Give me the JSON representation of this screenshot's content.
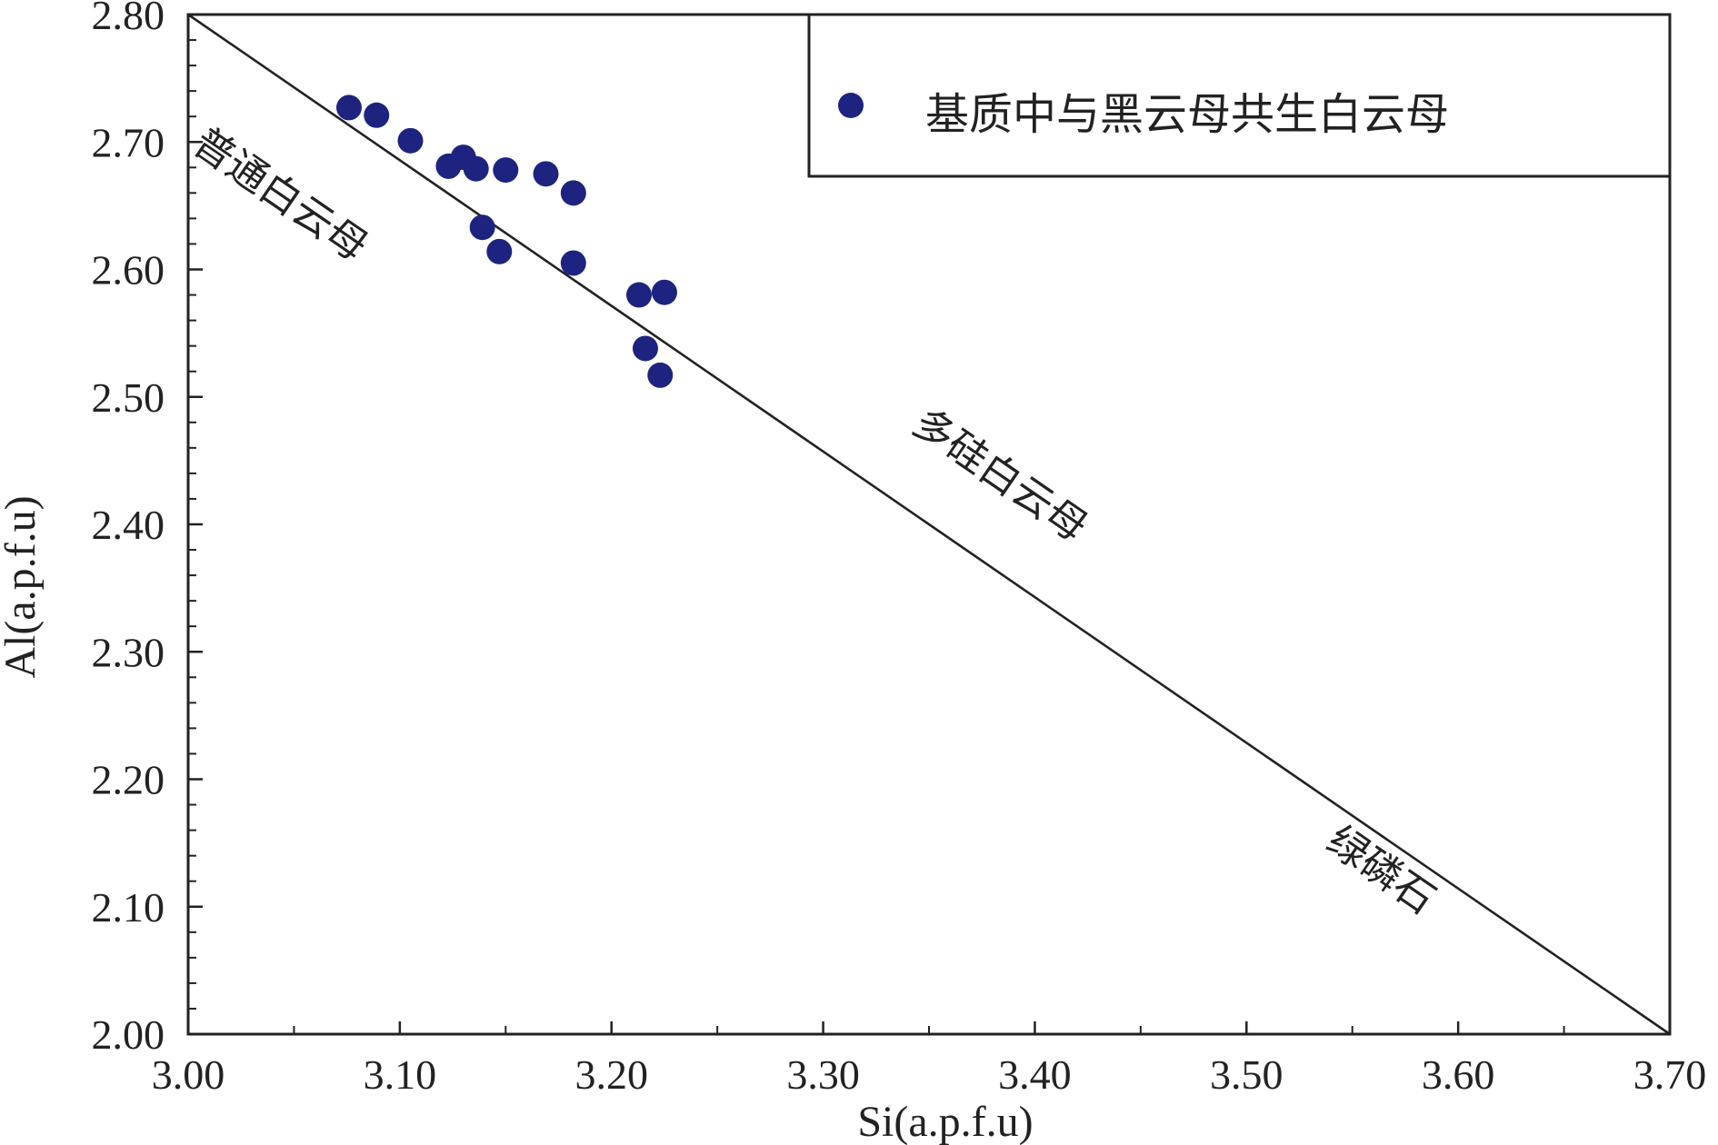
{
  "chart_data": {
    "type": "scatter",
    "xlabel": "Si(a.p.f.u)",
    "ylabel": "Al(a.p.f.u)",
    "xlim": [
      3.0,
      3.7
    ],
    "ylim": [
      2.0,
      2.8
    ],
    "x_ticks": [
      "3.00",
      "3.10",
      "3.20",
      "3.30",
      "3.40",
      "3.50",
      "3.60",
      "3.70"
    ],
    "y_ticks": [
      "2.00",
      "2.10",
      "2.20",
      "2.30",
      "2.40",
      "2.50",
      "2.60",
      "2.70",
      "2.80"
    ],
    "grid": false,
    "legend_position": "top-right",
    "reference_line": {
      "from": [
        3.0,
        2.8
      ],
      "to": [
        3.7,
        2.0
      ]
    },
    "region_labels": [
      {
        "text": "普通白云母",
        "x": 3.04,
        "y": 2.65
      },
      {
        "text": "多硅白云母",
        "x": 3.38,
        "y": 2.43
      },
      {
        "text": "绿磷石",
        "x": 3.56,
        "y": 2.12
      }
    ],
    "series": [
      {
        "name": "基质中与黑云母共生白云母",
        "color": "#1e237f",
        "points": [
          {
            "x": 3.076,
            "y": 2.727
          },
          {
            "x": 3.089,
            "y": 2.721
          },
          {
            "x": 3.105,
            "y": 2.701
          },
          {
            "x": 3.123,
            "y": 2.681
          },
          {
            "x": 3.13,
            "y": 2.688
          },
          {
            "x": 3.136,
            "y": 2.679
          },
          {
            "x": 3.15,
            "y": 2.678
          },
          {
            "x": 3.169,
            "y": 2.675
          },
          {
            "x": 3.182,
            "y": 2.66
          },
          {
            "x": 3.139,
            "y": 2.633
          },
          {
            "x": 3.147,
            "y": 2.614
          },
          {
            "x": 3.182,
            "y": 2.605
          },
          {
            "x": 3.213,
            "y": 2.58
          },
          {
            "x": 3.225,
            "y": 2.582
          },
          {
            "x": 3.216,
            "y": 2.538
          },
          {
            "x": 3.223,
            "y": 2.517
          }
        ]
      }
    ]
  }
}
